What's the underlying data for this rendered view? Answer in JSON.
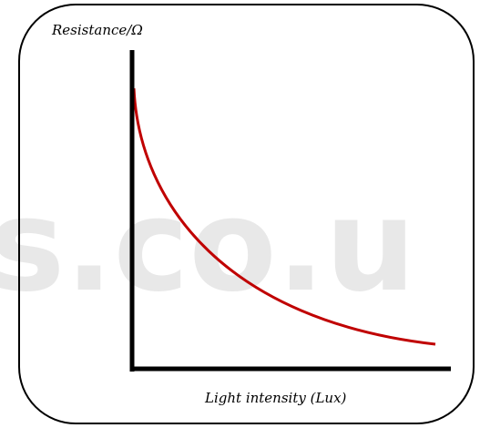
{
  "watermark": "s.co.u",
  "y_axis_label": "Resistance/Ω",
  "x_axis_label": "Light intensity (Lux)"
}
